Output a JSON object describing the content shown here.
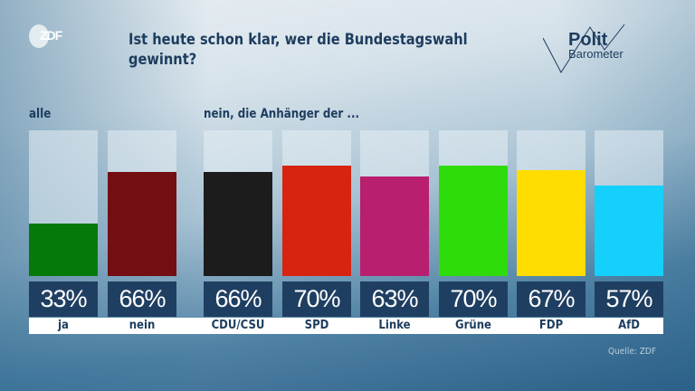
{
  "header": {
    "logo": "ZDF",
    "title": "Ist heute schon klar, wer die Bundestagswahl gewinnt?",
    "brand_line1": "Polit",
    "brand_line2": "Barometer"
  },
  "chart_data": {
    "type": "bar",
    "title": "Ist heute schon klar, wer die Bundestagswahl gewinnt?",
    "groups": [
      {
        "label": "alle",
        "categories": [
          "ja",
          "nein"
        ]
      },
      {
        "label": "nein, die Anhänger der ...",
        "categories": [
          "CDU/CSU",
          "SPD",
          "Linke",
          "Grüne",
          "FDP",
          "AfD"
        ]
      }
    ],
    "categories": [
      "ja",
      "nein",
      "CDU/CSU",
      "SPD",
      "Linke",
      "Grüne",
      "FDP",
      "AfD"
    ],
    "values": [
      33,
      66,
      66,
      70,
      63,
      70,
      67,
      57
    ],
    "value_labels": [
      "33%",
      "66%",
      "66%",
      "70%",
      "63%",
      "70%",
      "67%",
      "57%"
    ],
    "colors": [
      "#057a0a",
      "#730f12",
      "#1c1c1c",
      "#d62410",
      "#b81f6e",
      "#2edc0b",
      "#ffdc00",
      "#14d0fa"
    ],
    "unit": "%"
  },
  "source": "Quelle: ZDF"
}
